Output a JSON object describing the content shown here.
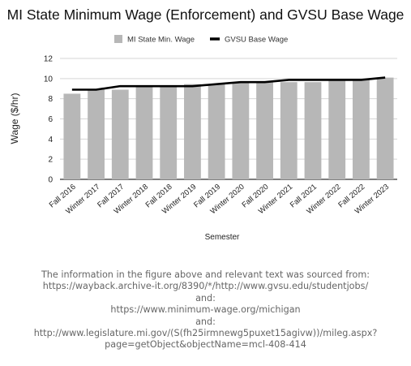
{
  "chart_data": {
    "type": "bar",
    "title": "MI State Minimum Wage (Enforcement) and GVSU Base Wage",
    "xlabel": "Semester",
    "ylabel": "Wage ($/hr)",
    "ylim": [
      0,
      12
    ],
    "yticks": [
      0,
      2,
      4,
      6,
      8,
      10,
      12
    ],
    "grid": true,
    "legend_position": "top",
    "categories": [
      "Fall 2016",
      "Winter 2017",
      "Fall 2017",
      "Winter 2018",
      "Fall 2018",
      "Winter 2019",
      "Fall 2019",
      "Winter 2020",
      "Fall 2020",
      "Winter 2021",
      "Fall 2021",
      "Winter 2022",
      "Fall 2022",
      "Winter 2023"
    ],
    "series": [
      {
        "name": "MI State Min. Wage",
        "type": "bar",
        "color": "#b7b7b7",
        "values": [
          8.5,
          8.9,
          8.9,
          9.25,
          9.25,
          9.45,
          9.45,
          9.65,
          9.65,
          9.65,
          9.65,
          9.87,
          9.87,
          10.1
        ]
      },
      {
        "name": "GVSU Base Wage",
        "type": "line",
        "color": "#000000",
        "values": [
          8.9,
          8.9,
          9.25,
          9.25,
          9.25,
          9.25,
          9.45,
          9.65,
          9.65,
          9.87,
          9.87,
          9.87,
          9.87,
          10.1
        ]
      }
    ]
  },
  "source_note": [
    "The information in the figure above and relevant text was sourced from:",
    "https://wayback.archive-it.org/8390/*/http://www.gvsu.edu/studentjobs/",
    "and:",
    "https://www.minimum-wage.org/michigan",
    "and:",
    "http://www.legislature.mi.gov/(S(fh25irmnewg5puxet15agivw))/mileg.aspx?",
    "page=getObject&objectName=mcl-408-414"
  ]
}
